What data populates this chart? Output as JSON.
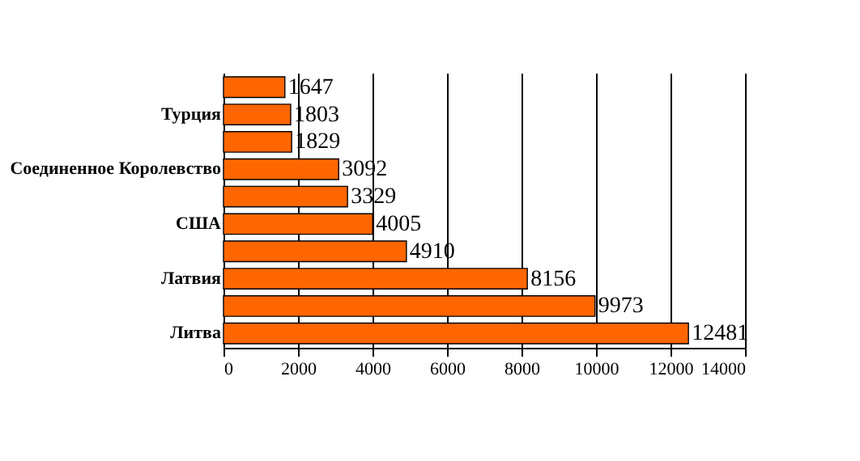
{
  "chart_data": {
    "type": "bar",
    "orientation": "horizontal",
    "categories": [
      null,
      "Турция",
      null,
      "Соединенное Королевство",
      null,
      "США",
      null,
      "Латвия",
      null,
      "Литва"
    ],
    "values": [
      1647,
      1803,
      1829,
      3092,
      3329,
      4005,
      4910,
      8156,
      9973,
      12481
    ],
    "color": "#ff6600",
    "xlim": [
      0,
      14000
    ],
    "xticks": [
      0,
      2000,
      4000,
      6000,
      8000,
      10000,
      12000,
      14000
    ],
    "grid": "x",
    "data_labels": true
  }
}
